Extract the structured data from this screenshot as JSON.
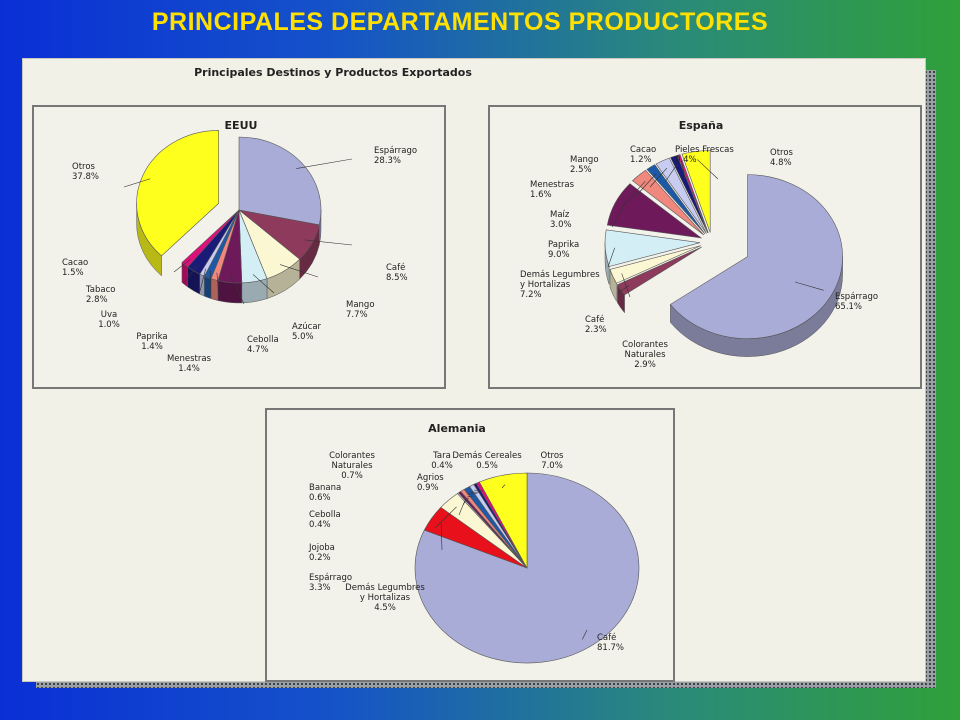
{
  "slide_title": "PRINCIPALES DEPARTAMENTOS PRODUCTORES",
  "panel_title": "Principales Destinos y Productos Exportados",
  "colors": {
    "background_left": "#0a2fd6",
    "background_right": "#2fa03a",
    "title": "#ffe000"
  },
  "chart_data": [
    {
      "type": "pie",
      "title": "EEUU",
      "slices": [
        {
          "label": "Espárrago",
          "value": 28.3,
          "display": "28.3%",
          "color": "#a9acd6"
        },
        {
          "label": "Café",
          "value": 8.5,
          "display": "8.5%",
          "color": "#8e3a5c"
        },
        {
          "label": "Mango",
          "value": 7.7,
          "display": "7.7%",
          "color": "#fbf7d2"
        },
        {
          "label": "Azúcar",
          "value": 5.0,
          "display": "5.0%",
          "color": "#d4eef6"
        },
        {
          "label": "Cebolla",
          "value": 4.7,
          "display": "4.7%",
          "color": "#6e1a5a"
        },
        {
          "label": "Menestras",
          "value": 1.4,
          "display": "1.4%",
          "color": "#f0887e"
        },
        {
          "label": "Paprika",
          "value": 1.4,
          "display": "1.4%",
          "color": "#1c5aa8"
        },
        {
          "label": "Uva",
          "value": 1.0,
          "display": "1.0%",
          "color": "#c8ccf0"
        },
        {
          "label": "Tabaco",
          "value": 2.8,
          "display": "2.8%",
          "color": "#1a1a78"
        },
        {
          "label": "Cacao",
          "value": 1.5,
          "display": "1.5%",
          "color": "#e0107a"
        },
        {
          "label": "Otros",
          "value": 37.8,
          "display": "37.8%",
          "color": "#ffff1e"
        }
      ]
    },
    {
      "type": "pie",
      "title": "España",
      "slices": [
        {
          "label": "Espárrago",
          "value": 65.1,
          "display": "65.1%",
          "color": "#a9acd6"
        },
        {
          "label": "Café",
          "value": 2.3,
          "display": "2.3%",
          "color": "#8e3a5c"
        },
        {
          "label": "Colorantes Naturales",
          "value": 2.9,
          "display": "2.9%",
          "color": "#fbf7d2"
        },
        {
          "label": "Demás Legumbres y Hortalizas",
          "value": 7.2,
          "display": "7.2%",
          "color": "#d4eef6"
        },
        {
          "label": "Paprika",
          "value": 9.0,
          "display": "9.0%",
          "color": "#6e1a5a"
        },
        {
          "label": "Maíz",
          "value": 3.0,
          "display": "3.0%",
          "color": "#f0887e"
        },
        {
          "label": "Menestras",
          "value": 1.6,
          "display": "1.6%",
          "color": "#1c5aa8"
        },
        {
          "label": "Mango",
          "value": 2.5,
          "display": "2.5%",
          "color": "#c8ccf0"
        },
        {
          "label": "Cacao",
          "value": 1.2,
          "display": "1.2%",
          "color": "#1a1a78"
        },
        {
          "label": "Pieles Frescas",
          "value": 0.4,
          "display": "0.4%",
          "color": "#e0107a"
        },
        {
          "label": "Otros",
          "value": 4.8,
          "display": "4.8%",
          "color": "#ffff1e"
        }
      ]
    },
    {
      "type": "pie",
      "title": "Alemania",
      "slices": [
        {
          "label": "Café",
          "value": 81.7,
          "display": "81.7%",
          "color": "#a9acd6"
        },
        {
          "label": "Demás Legumbres y Hortalizas",
          "value": 4.5,
          "display": "4.5%",
          "color": "#e8101a"
        },
        {
          "label": "Espárrago",
          "value": 3.3,
          "display": "3.3%",
          "color": "#fbf7d2"
        },
        {
          "label": "Jojoba",
          "value": 0.2,
          "display": "0.2%",
          "color": "#d4eef6"
        },
        {
          "label": "Cebolla",
          "value": 0.4,
          "display": "0.4%",
          "color": "#6e1a5a"
        },
        {
          "label": "Banana",
          "value": 0.6,
          "display": "0.6%",
          "color": "#f0887e"
        },
        {
          "label": "Agrios",
          "value": 0.9,
          "display": "0.9%",
          "color": "#1c5aa8"
        },
        {
          "label": "Colorantes Naturales",
          "value": 0.7,
          "display": "0.7%",
          "color": "#c8ccf0"
        },
        {
          "label": "Tara",
          "value": 0.4,
          "display": "0.4%",
          "color": "#1a1a78"
        },
        {
          "label": "Demás Cereales",
          "value": 0.5,
          "display": "0.5%",
          "color": "#e0107a"
        },
        {
          "label": "Otros",
          "value": 7.0,
          "display": "7.0%",
          "color": "#ffff1e"
        }
      ]
    }
  ]
}
